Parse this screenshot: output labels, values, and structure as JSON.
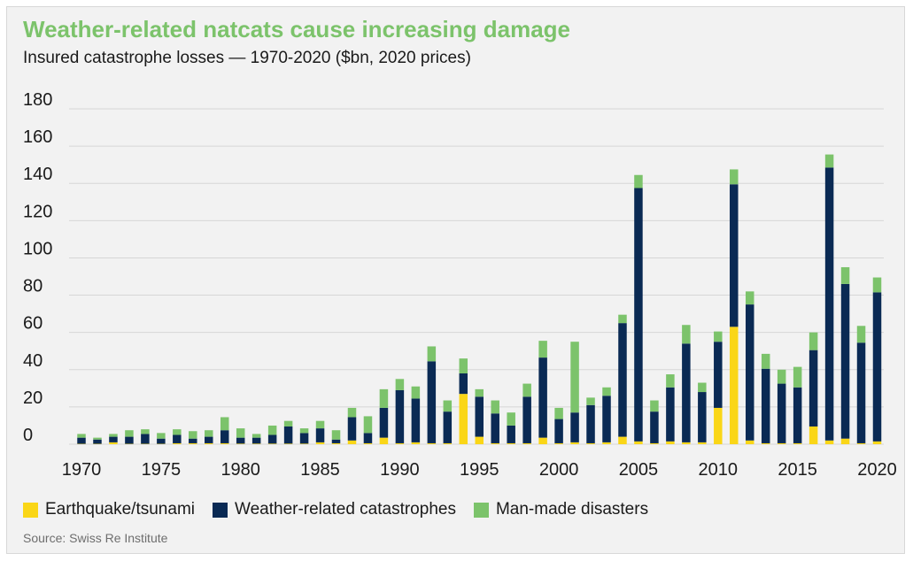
{
  "title": "Weather-related natcats cause increasing damage",
  "subtitle": "Insured catastrophe losses — 1970-2020 ($bn, 2020 prices)",
  "source": "Source: Swiss Re Institute",
  "colors": {
    "earthquake": "#fad617",
    "weather": "#0a2a54",
    "manmade": "#7cc36b",
    "title": "#7cc36b",
    "grid": "#d6d6d6"
  },
  "chart_data": {
    "type": "bar",
    "stacked": true,
    "title": "Weather-related natcats cause increasing damage",
    "subtitle": "Insured catastrophe losses — 1970-2020 ($bn, 2020 prices)",
    "xlabel": "",
    "ylabel": "",
    "ylim": [
      0,
      180
    ],
    "yticks": [
      0,
      20,
      40,
      60,
      80,
      100,
      120,
      140,
      160,
      180
    ],
    "xticks": [
      1970,
      1975,
      1980,
      1985,
      1990,
      1995,
      2000,
      2005,
      2010,
      2015,
      2020
    ],
    "grid": true,
    "legend_position": "bottom",
    "categories": [
      1970,
      1971,
      1972,
      1973,
      1974,
      1975,
      1976,
      1977,
      1978,
      1979,
      1980,
      1981,
      1982,
      1983,
      1984,
      1985,
      1986,
      1987,
      1988,
      1989,
      1990,
      1991,
      1992,
      1993,
      1994,
      1995,
      1996,
      1997,
      1998,
      1999,
      2000,
      2001,
      2002,
      2003,
      2004,
      2005,
      2006,
      2007,
      2008,
      2009,
      2010,
      2011,
      2012,
      2013,
      2014,
      2015,
      2016,
      2017,
      2018,
      2019,
      2020
    ],
    "series": [
      {
        "name": "Earthquake/tsunami",
        "color": "#fad617",
        "values": [
          0.2,
          0.2,
          1,
          0.2,
          0.2,
          0.2,
          0.5,
          0.5,
          0.5,
          0.5,
          0.3,
          0.3,
          0.3,
          0.3,
          0.3,
          1,
          0.5,
          2,
          0.5,
          3.5,
          0.5,
          1,
          0.5,
          0.5,
          27,
          4,
          0.5,
          0.5,
          0.5,
          3.5,
          0.5,
          1,
          0.5,
          1,
          4,
          1.5,
          0.5,
          1.5,
          1,
          1,
          19.5,
          63,
          2,
          0.5,
          0.5,
          0.5,
          9.5,
          2,
          3,
          0.5,
          1.5
        ]
      },
      {
        "name": "Weather-related catastrophes",
        "color": "#0a2a54",
        "values": [
          3.3,
          2.3,
          3,
          3.8,
          5.3,
          2.8,
          4.5,
          2.5,
          3.5,
          7,
          3.2,
          3.2,
          4.7,
          9.2,
          5.7,
          7.5,
          2,
          12.5,
          5.5,
          16,
          28.5,
          23.5,
          44,
          17,
          11,
          21.5,
          16,
          9.5,
          25,
          43,
          13,
          16,
          20.5,
          25,
          61,
          136,
          17,
          29,
          53,
          27,
          35.5,
          76.5,
          73,
          40,
          32,
          30,
          41,
          146.5,
          83,
          54,
          80
        ]
      },
      {
        "name": "Man-made disasters",
        "color": "#7cc36b",
        "values": [
          2,
          1,
          1.5,
          3.5,
          2.5,
          3,
          3,
          4,
          3.5,
          7,
          5,
          2,
          5,
          3,
          2.5,
          4,
          5,
          5,
          9,
          10,
          6,
          6.5,
          8,
          6,
          8,
          4,
          7,
          7,
          7,
          9,
          6,
          38,
          4,
          4.5,
          4.5,
          7,
          6,
          7,
          10,
          5,
          5.5,
          8,
          7,
          8,
          7.5,
          11,
          9.5,
          7,
          9,
          9,
          8
        ]
      }
    ]
  }
}
